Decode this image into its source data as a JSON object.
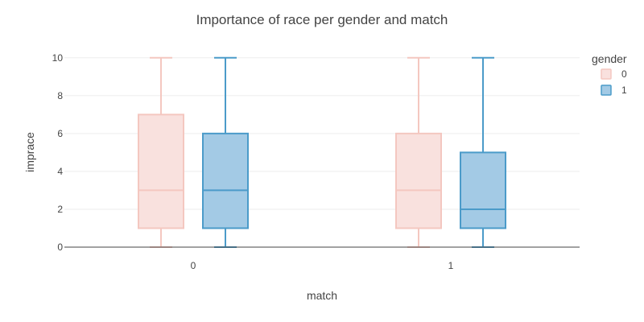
{
  "chart_data": {
    "type": "box",
    "title": "Importance of race per gender and match",
    "xlabel": "match",
    "ylabel": "imprace",
    "categories": [
      "0",
      "1"
    ],
    "ylim": [
      0,
      10.5
    ],
    "yticks": [
      0,
      2,
      4,
      6,
      8,
      10
    ],
    "grid": true,
    "legend": {
      "title": "gender",
      "placement": "top-right"
    },
    "series": [
      {
        "name": "0",
        "line_color": "#f4c7c0",
        "fill_color": "#f9e1de",
        "boxes": [
          {
            "category": "0",
            "min": 0,
            "q1": 1,
            "median": 3,
            "q3": 7,
            "max": 10
          },
          {
            "category": "1",
            "min": 0,
            "q1": 1,
            "median": 3,
            "q3": 6,
            "max": 10
          }
        ]
      },
      {
        "name": "1",
        "line_color": "#4b9bc9",
        "fill_color": "#a3cae5",
        "boxes": [
          {
            "category": "0",
            "min": 0,
            "q1": 1,
            "median": 3,
            "q3": 6,
            "max": 10
          },
          {
            "category": "1",
            "min": 0,
            "q1": 1,
            "median": 2,
            "q3": 5,
            "max": 10
          }
        ]
      }
    ]
  }
}
